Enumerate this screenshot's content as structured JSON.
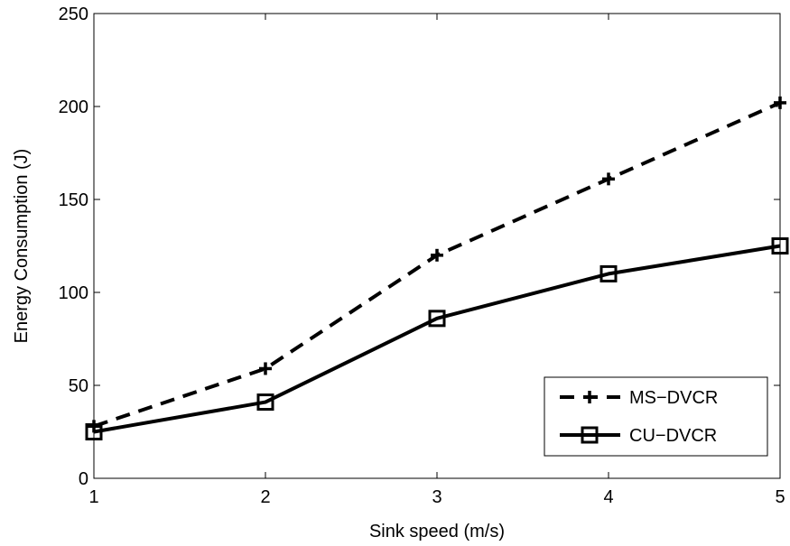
{
  "chart_data": {
    "type": "line",
    "title": "",
    "xlabel": "Sink speed (m/s)",
    "ylabel": "Energy Consumption (J)",
    "x": [
      1,
      2,
      3,
      4,
      5
    ],
    "xlim": [
      1,
      5
    ],
    "ylim": [
      0,
      250
    ],
    "xticks": [
      "1",
      "2",
      "3",
      "4",
      "5"
    ],
    "yticks": [
      "0",
      "50",
      "100",
      "150",
      "200",
      "250"
    ],
    "grid": false,
    "legend_position": "bottom-right",
    "series": [
      {
        "name": "MS−DVCR",
        "values": [
          28,
          59,
          120,
          161,
          202
        ],
        "line": "dashed",
        "marker": "plus",
        "color": "#000000"
      },
      {
        "name": "CU−DVCR",
        "values": [
          25,
          41,
          86,
          110,
          125
        ],
        "line": "solid",
        "marker": "square",
        "color": "#000000"
      }
    ]
  }
}
